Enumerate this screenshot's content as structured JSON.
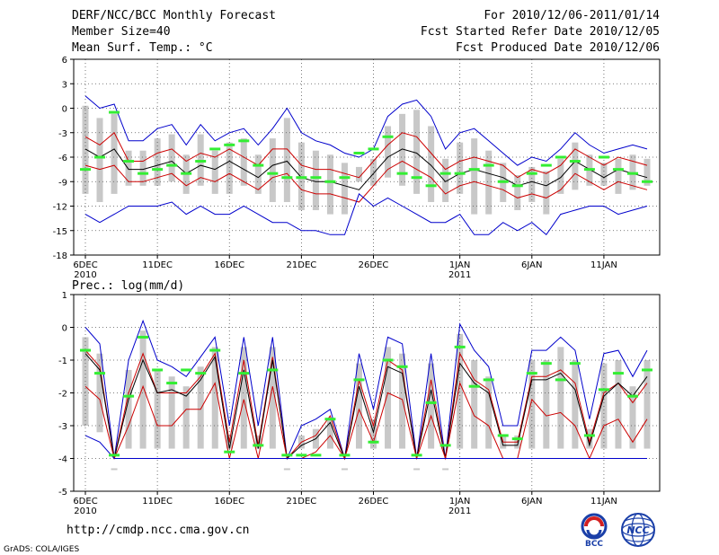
{
  "header": {
    "title": "DERF/NCC/BCC Monthly Forecast",
    "member_size": "Member Size=40",
    "variable": "Mean Surf. Temp.: °C",
    "period": "For 2010/12/06-2011/01/14",
    "started": "Fcst Started Refer Date 2010/12/05",
    "produced": "Fcst Produced Date 2010/12/06"
  },
  "footer": {
    "url": "http://cmdp.ncc.cma.gov.cn",
    "grads": "GrADS: COLA/IGES",
    "logo_left_text": "BCC",
    "logo_right_text": "NCC"
  },
  "colors": {
    "ensemble_max_min": "#0000cc",
    "spread": "#cc0000",
    "mean": "#000000",
    "observed": "#33ee33",
    "box": "#c8c8c8",
    "grid": "#555555"
  },
  "chart_data": [
    {
      "type": "line",
      "title": "Mean Surf. Temp.: °C",
      "ylabel": "°C",
      "ylim": [
        -18,
        6
      ],
      "yticks": [
        6,
        3,
        0,
        -3,
        -6,
        -9,
        -12,
        -15,
        -18
      ],
      "xlim": [
        0,
        39
      ],
      "xticks": [
        {
          "x": 0,
          "label": "6DEC",
          "sub": "2010"
        },
        {
          "x": 5,
          "label": "11DEC",
          "sub": ""
        },
        {
          "x": 10,
          "label": "16DEC",
          "sub": ""
        },
        {
          "x": 15,
          "label": "21DEC",
          "sub": ""
        },
        {
          "x": 20,
          "label": "26DEC",
          "sub": ""
        },
        {
          "x": 26,
          "label": "1JAN",
          "sub": "2011"
        },
        {
          "x": 31,
          "label": "6JAN",
          "sub": ""
        },
        {
          "x": 36,
          "label": "11JAN",
          "sub": ""
        }
      ],
      "grid": true,
      "series": [
        {
          "name": "max",
          "color": "#0000cc",
          "values": [
            1.5,
            0,
            0.5,
            -4,
            -4,
            -2.5,
            -2,
            -4.5,
            -2,
            -4,
            -3,
            -2.5,
            -4.5,
            -2.5,
            0,
            -3,
            -4,
            -4.5,
            -5.5,
            -6,
            -5,
            -1,
            0.5,
            1,
            -1,
            -5,
            -3,
            -2.5,
            -4,
            -5.5,
            -7,
            -6,
            -6.5,
            -5,
            -3,
            -4.5,
            -5.5,
            -5,
            -4.5,
            -5
          ]
        },
        {
          "name": "upper",
          "color": "#cc0000",
          "values": [
            -3.5,
            -4.5,
            -3,
            -6.5,
            -6.5,
            -5.5,
            -5,
            -6.5,
            -5.5,
            -6,
            -5,
            -6,
            -7,
            -5,
            -5,
            -7,
            -7.5,
            -7.5,
            -8,
            -8.5,
            -6.5,
            -4.5,
            -3,
            -3.5,
            -5.5,
            -7.5,
            -6.5,
            -6,
            -6.5,
            -7,
            -8.5,
            -7.5,
            -8,
            -7,
            -5,
            -6,
            -7,
            -6,
            -6.5,
            -7
          ]
        },
        {
          "name": "mean",
          "color": "#000000",
          "values": [
            -5,
            -6,
            -5,
            -7.5,
            -7.5,
            -7,
            -6.5,
            -8,
            -7,
            -7.5,
            -6.5,
            -7.5,
            -8.5,
            -7,
            -6.5,
            -8.5,
            -9,
            -9,
            -9.5,
            -10,
            -8,
            -6,
            -5,
            -5.5,
            -7,
            -9,
            -8,
            -7.5,
            -8,
            -8.5,
            -9.5,
            -9,
            -9.5,
            -8.5,
            -6.5,
            -7.5,
            -8.5,
            -7.5,
            -8,
            -8.5
          ]
        },
        {
          "name": "lower",
          "color": "#cc0000",
          "values": [
            -7,
            -7.5,
            -7,
            -9,
            -9,
            -8.5,
            -8,
            -9.5,
            -8.5,
            -9,
            -8,
            -9,
            -10,
            -8.5,
            -8,
            -10,
            -10.5,
            -10.5,
            -11,
            -11.5,
            -9.5,
            -7.5,
            -6.5,
            -7.5,
            -8.5,
            -10.5,
            -9.5,
            -9,
            -9.5,
            -10,
            -11,
            -10.5,
            -11,
            -10,
            -8,
            -9,
            -10,
            -9,
            -9.5,
            -10
          ]
        },
        {
          "name": "min",
          "color": "#0000cc",
          "values": [
            -13,
            -14,
            -13,
            -12,
            -12,
            -12,
            -11.5,
            -13,
            -12,
            -13,
            -13,
            -12,
            -13,
            -14,
            -14,
            -15,
            -15,
            -15.5,
            -15.5,
            -10.5,
            -12,
            -11,
            -12,
            -13,
            -14,
            -14,
            -13,
            -15.5,
            -15.5,
            -14,
            -15,
            -14,
            -15.5,
            -13,
            -12.5,
            -12,
            -12,
            -13,
            -12.5,
            -12
          ]
        },
        {
          "name": "observed",
          "color": "#33ee33",
          "values": [
            -7.5,
            -6,
            -0.5,
            -6.5,
            -8,
            -7.5,
            -7,
            -8,
            -6.5,
            -5,
            -4.5,
            -4,
            -7,
            -8,
            -8.5,
            -8.5,
            -8.5,
            -9,
            -8.5,
            -5.5,
            -5,
            -3.5,
            -8,
            -8.5,
            -9.5,
            -8,
            -8,
            -7.5,
            -7,
            -9,
            -9.5,
            -8,
            -7,
            -6,
            -6.5,
            -7.5,
            -6,
            -7.5,
            -8,
            -9
          ]
        }
      ]
    },
    {
      "type": "line",
      "title": "Prec.: log(mm/d)",
      "ylabel": "log(mm/d)",
      "ylim": [
        -5,
        1
      ],
      "yticks": [
        1,
        0,
        -1,
        -2,
        -3,
        -4,
        -5
      ],
      "xlim": [
        0,
        39
      ],
      "xticks": [
        {
          "x": 0,
          "label": "6DEC",
          "sub": "2010"
        },
        {
          "x": 5,
          "label": "11DEC",
          "sub": ""
        },
        {
          "x": 10,
          "label": "16DEC",
          "sub": ""
        },
        {
          "x": 15,
          "label": "21DEC",
          "sub": ""
        },
        {
          "x": 20,
          "label": "26DEC",
          "sub": ""
        },
        {
          "x": 26,
          "label": "1JAN",
          "sub": "2011"
        },
        {
          "x": 31,
          "label": "6JAN",
          "sub": ""
        },
        {
          "x": 36,
          "label": "11JAN",
          "sub": ""
        }
      ],
      "grid": true,
      "series": [
        {
          "name": "max",
          "color": "#0000cc",
          "values": [
            0,
            -0.5,
            -4,
            -1,
            0.2,
            -1,
            -1.2,
            -1.5,
            -0.9,
            -0.3,
            -3,
            -0.3,
            -3,
            -0.3,
            -4,
            -3,
            -2.8,
            -2.5,
            -4,
            -0.8,
            -2.5,
            -0.3,
            -0.5,
            -4,
            -0.8,
            -4,
            0.1,
            -0.7,
            -1.2,
            -3,
            -3,
            -0.7,
            -0.7,
            -0.3,
            -0.7,
            -2.8,
            -0.8,
            -0.7,
            -1.5,
            -0.7
          ]
        },
        {
          "name": "upper",
          "color": "#cc0000",
          "values": [
            -0.7,
            -1.2,
            -4,
            -2,
            -0.8,
            -2,
            -2,
            -2,
            -1.5,
            -0.8,
            -3.5,
            -1,
            -3.6,
            -0.9,
            -4,
            -3.5,
            -3.3,
            -2.7,
            -4,
            -1.6,
            -3,
            -1,
            -1.3,
            -4,
            -1.6,
            -4,
            -0.8,
            -1.6,
            -1.9,
            -3.5,
            -3.5,
            -1.5,
            -1.5,
            -1.3,
            -1.7,
            -3.5,
            -2,
            -1.7,
            -2.3,
            -1.7
          ]
        },
        {
          "name": "mean",
          "color": "#000000",
          "values": [
            -0.8,
            -1.3,
            -4,
            -2.2,
            -1,
            -2,
            -1.9,
            -2.1,
            -1.6,
            -0.9,
            -3.7,
            -1.3,
            -3.7,
            -1,
            -4,
            -3.6,
            -3.4,
            -2.9,
            -4,
            -1.8,
            -3.2,
            -1.2,
            -1.4,
            -4,
            -1.9,
            -4,
            -1.1,
            -1.7,
            -2,
            -3.6,
            -3.6,
            -1.6,
            -1.6,
            -1.4,
            -1.9,
            -3.6,
            -2.1,
            -1.7,
            -2.1,
            -1.5
          ]
        },
        {
          "name": "lower",
          "color": "#cc0000",
          "values": [
            -1.8,
            -2.2,
            -4,
            -3,
            -1.8,
            -3,
            -3,
            -2.5,
            -2.5,
            -1.7,
            -4,
            -2.2,
            -4,
            -1.8,
            -4,
            -4,
            -3.8,
            -3.3,
            -4,
            -2.5,
            -3.5,
            -2,
            -2.2,
            -4,
            -2.7,
            -4,
            -1.7,
            -2.7,
            -3,
            -4,
            -4,
            -2.2,
            -2.7,
            -2.6,
            -3,
            -4,
            -3,
            -2.8,
            -3.5,
            -2.8
          ]
        },
        {
          "name": "min",
          "color": "#0000cc",
          "values": [
            -3.3,
            -3.5,
            -4,
            -4,
            -4,
            -4,
            -4,
            -4,
            -4,
            -4,
            -4,
            -4,
            -4,
            -4,
            -4,
            -4,
            -4,
            -4,
            -4,
            -4,
            -4,
            -4,
            -4,
            -4,
            -4,
            -4,
            -4,
            -4,
            -4,
            -4,
            -4,
            -4,
            -4,
            -4,
            -4,
            -4,
            -4,
            -4,
            -4,
            -4
          ]
        },
        {
          "name": "observed",
          "color": "#33ee33",
          "values": [
            -0.7,
            -1.4,
            -3.9,
            -2.1,
            -0.3,
            -1.3,
            -1.7,
            -1.3,
            -1.4,
            -0.7,
            -3.8,
            -1.4,
            -3.6,
            -1.3,
            -3.9,
            -3.9,
            -3.9,
            -2.8,
            -3.9,
            -1.6,
            -3.5,
            -1,
            -1.2,
            -3.9,
            -2.3,
            -3.6,
            -0.6,
            -1.8,
            -1.6,
            -3.3,
            -3.4,
            -1.4,
            -1.1,
            -1.6,
            -1.1,
            -3.3,
            -1.9,
            -1.4,
            -2.1,
            -1.3
          ]
        }
      ]
    }
  ]
}
